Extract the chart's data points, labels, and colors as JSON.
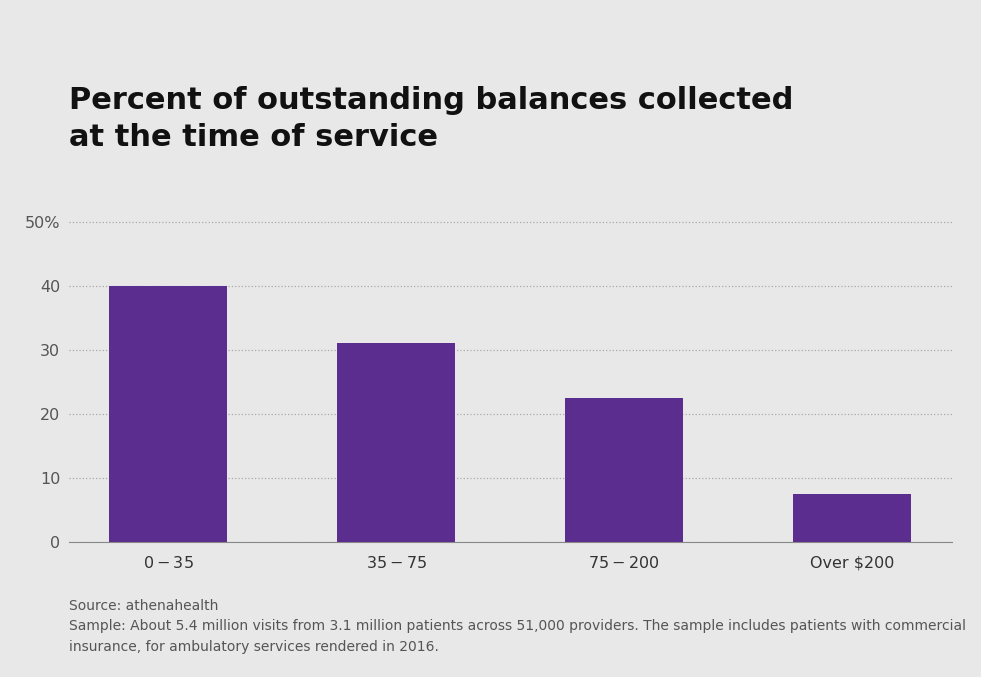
{
  "title_line1": "Percent of outstanding balances collected",
  "title_line2": "at the time of service",
  "categories": [
    "$0-$35",
    "$35-$75",
    "$75-$200",
    "Over $200"
  ],
  "values": [
    40,
    31,
    22.5,
    7.5
  ],
  "bar_color": "#5b2d8e",
  "background_color": "#e8e8e8",
  "yticks": [
    0,
    10,
    20,
    30,
    40,
    50
  ],
  "ylim": [
    0,
    55
  ],
  "source_line1": "Source: athenahealth",
  "source_line2": "Sample: About 5.4 million visits from 3.1 million patients across 51,000 providers. The sample includes patients with commercial",
  "source_line3": "insurance, for ambulatory services rendered in 2016.",
  "title_fontsize": 22,
  "tick_fontsize": 11.5,
  "source_fontsize": 10
}
